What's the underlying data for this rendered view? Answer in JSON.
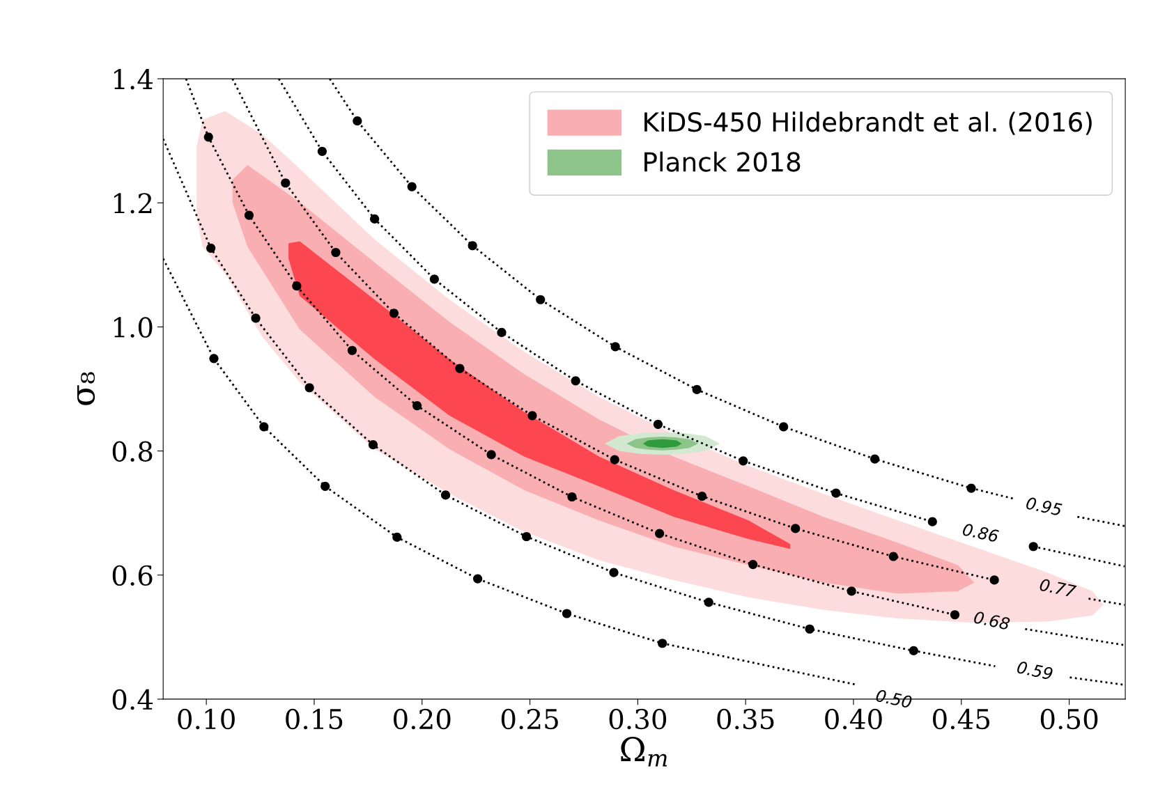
{
  "chart_data": {
    "type": "area",
    "xlabel": "Ω$_{m}$",
    "ylabel": "σ₈",
    "xlim": [
      0.08,
      0.526
    ],
    "ylim": [
      0.4,
      1.4
    ],
    "xticks": [
      {
        "value": 0.1,
        "label": "0.10"
      },
      0.15,
      {
        "value": 0.2,
        "label": "0.20"
      },
      0.25,
      {
        "value": 0.3,
        "label": "0.30"
      },
      0.35,
      {
        "value": 0.4,
        "label": "0.40"
      },
      0.45,
      {
        "value": 0.5,
        "label": "0.50"
      }
    ],
    "yticks": [
      0.4,
      0.6,
      0.8,
      {
        "value": 1,
        "label": "1.0"
      },
      1.2,
      1.4
    ],
    "grid": false,
    "legend": "top right",
    "series": [
      {
        "color": "#fddcdd",
        "x": [
          0.0955,
          0.0983,
          0.1087,
          0.126,
          0.1433,
          0.178,
          0.2127,
          0.2473,
          0.282,
          0.3166,
          0.3513,
          0.386,
          0.4206,
          0.4553,
          0.4899,
          0.5107,
          0.5159,
          0.5107,
          0.4899,
          0.4553,
          0.4206,
          0.386,
          0.3513,
          0.3166,
          0.282,
          0.2473,
          0.2127,
          0.178,
          0.1433,
          0.126,
          0.1087,
          0.0983,
          0.0955
        ],
        "values": [
          1.291,
          1.334,
          1.348,
          1.31,
          1.255,
          1.141,
          1.044,
          0.96,
          0.887,
          0.827,
          0.776,
          0.731,
          0.688,
          0.646,
          0.604,
          0.574,
          0.552,
          0.535,
          0.525,
          0.523,
          0.53,
          0.544,
          0.564,
          0.592,
          0.624,
          0.67,
          0.731,
          0.803,
          0.911,
          0.984,
          1.086,
          1.129,
          1.177
        ]
      },
      {
        "name": "KiDS-450 Hildebrandt et al. (2016)",
        "color": "#f9aeb2",
        "x": [
          0.1121,
          0.1191,
          0.1433,
          0.178,
          0.2127,
          0.2473,
          0.282,
          0.3166,
          0.3513,
          0.386,
          0.4206,
          0.4484,
          0.456,
          0.4484,
          0.4206,
          0.386,
          0.3513,
          0.3166,
          0.282,
          0.2473,
          0.2127,
          0.178,
          0.1433,
          0.1191,
          0.1121
        ],
        "values": [
          1.237,
          1.261,
          1.201,
          1.104,
          1.008,
          0.924,
          0.851,
          0.791,
          0.743,
          0.694,
          0.652,
          0.616,
          0.588,
          0.574,
          0.57,
          0.588,
          0.616,
          0.646,
          0.688,
          0.737,
          0.803,
          0.887,
          0.996,
          1.129,
          1.201
        ]
      },
      {
        "color": "#fc4650",
        "x": [
          0.1381,
          0.1433,
          0.178,
          0.2127,
          0.2473,
          0.282,
          0.3166,
          0.3513,
          0.3707,
          0.3707,
          0.3513,
          0.3166,
          0.282,
          0.2473,
          0.2127,
          0.178,
          0.1433,
          0.1381
        ],
        "values": [
          1.135,
          1.138,
          1.044,
          0.948,
          0.863,
          0.791,
          0.737,
          0.688,
          0.65,
          0.642,
          0.658,
          0.694,
          0.743,
          0.791,
          0.857,
          0.948,
          1.05,
          1.11
        ]
      },
      {
        "color": "#d3e8d0",
        "x": [
          0.2847,
          0.2914,
          0.3014,
          0.3114,
          0.3214,
          0.3314,
          0.3381,
          0.3314,
          0.3214,
          0.3114,
          0.3014,
          0.2914
        ],
        "values": [
          0.812,
          0.824,
          0.829,
          0.83,
          0.829,
          0.824,
          0.812,
          0.8,
          0.795,
          0.794,
          0.795,
          0.8
        ]
      },
      {
        "name": "Planck 2018",
        "color": "#8cc48a",
        "x": [
          0.2948,
          0.2989,
          0.3052,
          0.3114,
          0.3176,
          0.3239,
          0.328,
          0.3239,
          0.3176,
          0.3114,
          0.3052,
          0.2989
        ],
        "values": [
          0.812,
          0.819,
          0.822,
          0.823,
          0.822,
          0.819,
          0.812,
          0.805,
          0.802,
          0.801,
          0.802,
          0.805
        ]
      },
      {
        "color": "#2f9a3c",
        "x": [
          0.3024,
          0.3047,
          0.308,
          0.3114,
          0.3148,
          0.3181,
          0.3204,
          0.3181,
          0.3148,
          0.3114,
          0.308,
          0.3047
        ],
        "values": [
          0.812,
          0.817,
          0.818,
          0.819,
          0.818,
          0.817,
          0.812,
          0.807,
          0.806,
          0.805,
          0.806,
          0.807
        ]
      },
      {
        "type": "line",
        "color": "#000000",
        "line_style": "dotted",
        "x": [
          0.08,
          0.1035,
          0.1267,
          0.1551,
          0.1884,
          0.2258,
          0.2671,
          0.3114,
          0.4016
        ],
        "values": [
          1.11,
          0.949,
          0.839,
          0.743,
          0.661,
          0.594,
          0.538,
          0.49,
          0.423
        ]
      },
      {
        "type": "line",
        "color": "#000000",
        "line_style": "dotted",
        "x": [
          0.08,
          0.1021,
          0.1229,
          0.1478,
          0.1773,
          0.2109,
          0.2484,
          0.2889,
          0.3329,
          0.3797,
          0.4279,
          0.4657,
          0.484,
          0.5003,
          0.5257
        ],
        "values": [
          1.303,
          1.127,
          1.014,
          0.902,
          0.81,
          0.729,
          0.662,
          0.604,
          0.556,
          0.513,
          0.478,
          0.453,
          null,
          0.435,
          0.423
        ]
      },
      {
        "type": "line",
        "color": "#000000",
        "line_style": "dotted",
        "x": [
          0.0906,
          0.101,
          0.1198,
          0.1419,
          0.1676,
          0.1977,
          0.2321,
          0.2695,
          0.3101,
          0.3534,
          0.3991,
          0.447,
          0.464,
          0.4796,
          0.5257
        ],
        "values": [
          1.4,
          1.306,
          1.18,
          1.066,
          0.962,
          0.873,
          0.794,
          0.726,
          0.667,
          0.617,
          0.574,
          0.536,
          null,
          0.513,
          0.487
        ]
      },
      {
        "type": "line",
        "color": "#000000",
        "line_style": "dotted",
        "x": [
          0.1121,
          0.1367,
          0.16,
          0.187,
          0.2175,
          0.2511,
          0.2893,
          0.3298,
          0.3731,
          0.4185,
          0.4653,
          0.4945,
          0.509,
          0.5257
        ],
        "values": [
          1.4,
          1.232,
          1.12,
          1.022,
          0.933,
          0.857,
          0.786,
          0.727,
          0.675,
          0.63,
          0.592,
          null,
          0.562,
          0.552
        ]
      },
      {
        "type": "line",
        "color": "#000000",
        "line_style": "dotted",
        "x": [
          0.1336,
          0.1537,
          0.178,
          0.2057,
          0.2369,
          0.2712,
          0.3094,
          0.3489,
          0.3919,
          0.4366,
          0.4588,
          0.4834,
          0.5257
        ],
        "values": [
          1.4,
          1.283,
          1.174,
          1.077,
          0.991,
          0.913,
          0.843,
          0.784,
          0.732,
          0.686,
          null,
          0.646,
          0.614
        ]
      },
      {
        "type": "line",
        "color": "#000000",
        "line_style": "dotted",
        "x": [
          0.1572,
          0.17,
          0.1953,
          0.2234,
          0.2549,
          0.2896,
          0.3274,
          0.3676,
          0.4099,
          0.4546,
          0.4744,
          0.4882,
          0.5038,
          0.5257
        ],
        "values": [
          1.4,
          1.332,
          1.226,
          1.131,
          1.044,
          0.968,
          0.899,
          0.839,
          0.787,
          0.74,
          0.723,
          null,
          0.694,
          0.679
        ]
      },
      {
        "type": "scatter",
        "color": "#000000",
        "marker": "circle",
        "x": [
          0.1035,
          0.1267,
          0.1551,
          0.1884,
          0.2258,
          0.2671,
          0.3114,
          0.1021,
          0.1229,
          0.1478,
          0.1773,
          0.2109,
          0.2484,
          0.2889,
          0.3329,
          0.3797,
          0.4279,
          0.101,
          0.1198,
          0.1419,
          0.1676,
          0.1977,
          0.2321,
          0.2695,
          0.3101,
          0.3534,
          0.3991,
          0.447,
          0.1367,
          0.16,
          0.187,
          0.2175,
          0.2511,
          0.2893,
          0.3298,
          0.3731,
          0.4185,
          0.4653,
          0.1537,
          0.178,
          0.2057,
          0.2369,
          0.2712,
          0.3094,
          0.3489,
          0.3919,
          0.4366,
          0.4834,
          0.17,
          0.1953,
          0.2234,
          0.2549,
          0.2896,
          0.3274,
          0.3676,
          0.4099,
          0.4546
        ],
        "values": [
          0.949,
          0.839,
          0.743,
          0.661,
          0.594,
          0.538,
          0.49,
          1.127,
          1.014,
          0.902,
          0.81,
          0.729,
          0.662,
          0.604,
          0.556,
          0.513,
          0.478,
          1.306,
          1.18,
          1.066,
          0.962,
          0.873,
          0.794,
          0.726,
          0.667,
          0.617,
          0.574,
          0.536,
          1.232,
          1.12,
          1.022,
          0.933,
          0.857,
          0.786,
          0.727,
          0.675,
          0.63,
          0.592,
          1.283,
          1.174,
          1.077,
          0.991,
          0.913,
          0.843,
          0.784,
          0.732,
          0.686,
          0.646,
          1.332,
          1.226,
          1.131,
          1.044,
          0.968,
          0.899,
          0.839,
          0.787,
          0.74
        ]
      }
    ],
    "annotations": [
      "0.50",
      "0.59",
      "0.68",
      "0.77",
      "0.86",
      "0.95"
    ]
  }
}
